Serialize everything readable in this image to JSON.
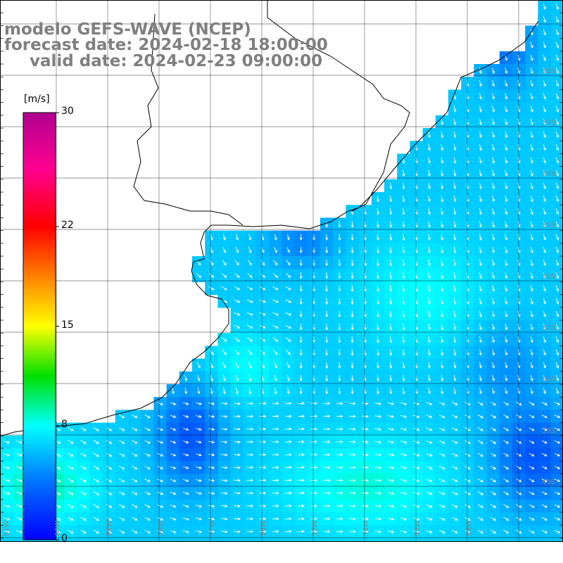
{
  "header": {
    "model": "modelo GEFS-WAVE (NCEP)",
    "forecast": "forecast date: 2024-02-18 18:00:00",
    "valid": "valid date: 2024-02-23 09:00:00"
  },
  "colorbar": {
    "unit": "[m/s]",
    "min": 0,
    "max": 30,
    "ticks": [
      "30",
      "22",
      "15",
      "8",
      "0"
    ],
    "tick_values": [
      30,
      22,
      15,
      8,
      0
    ],
    "stops": [
      {
        "value": 0,
        "color": "#0000ff"
      },
      {
        "value": 4,
        "color": "#0070ff"
      },
      {
        "value": 8,
        "color": "#00ffff"
      },
      {
        "value": 11.5,
        "color": "#00e000"
      },
      {
        "value": 15,
        "color": "#ffff00"
      },
      {
        "value": 18.5,
        "color": "#ff8000"
      },
      {
        "value": 22,
        "color": "#ff0000"
      },
      {
        "value": 26,
        "color": "#ff0090"
      },
      {
        "value": 30,
        "color": "#b00090"
      }
    ]
  },
  "axes": {
    "lat_labels": [
      "31S",
      "33S",
      "34S",
      "35S",
      "36S",
      "37S",
      "38S",
      "39S",
      "40S"
    ],
    "lon_labels": [
      "61W",
      "60W",
      "59W",
      "58W",
      "57W",
      "56W",
      "55W",
      "54W",
      "53W",
      "52W"
    ]
  },
  "colors": {
    "ocean_fast": "#00e0e8",
    "ocean_mid": "#00b4ff",
    "ocean_slow": "#0050f0",
    "land": "#ffffff",
    "grid": "#000000",
    "title_text": "#7f7f7f"
  }
}
